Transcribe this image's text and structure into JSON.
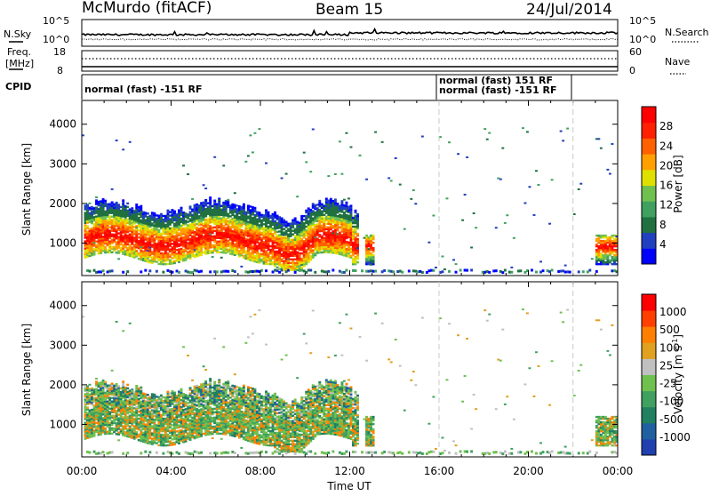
{
  "header": {
    "station": "McMurdo (fitACF)",
    "beam": "Beam 15",
    "date": "24/Jul/2014"
  },
  "noise_panel": {
    "left_label": "N.Sky",
    "right_label": "N.Search",
    "left_ticks": [
      "10^5",
      "10^0"
    ],
    "right_ticks": [
      "10^5",
      "10^0"
    ]
  },
  "freq_panel": {
    "left_label_line1": "Freq.",
    "left_label_line2": "[MHz]",
    "left_ticks": [
      "18",
      "8"
    ],
    "right_label": "Nave",
    "right_ticks": [
      "60",
      "0"
    ]
  },
  "cpid_panel": {
    "label": "CPID",
    "segments": [
      {
        "text": "normal (fast) -151 RF"
      },
      {
        "text": "normal (fast) 151 RF"
      },
      {
        "text": "normal (fast) -151 RF"
      }
    ]
  },
  "chart_data": [
    {
      "type": "heatmap",
      "name": "power",
      "ylabel": "Slant Range [km]",
      "xlabel": "Time UT",
      "xlim_hours": [
        0,
        24
      ],
      "ylim": [
        180,
        4600
      ],
      "y_ticks": [
        "1000",
        "2000",
        "3000",
        "4000"
      ],
      "y_tick_values": [
        1000,
        2000,
        3000,
        4000
      ],
      "x_ticks": [
        "00:00",
        "04:00",
        "08:00",
        "12:00",
        "16:00",
        "20:00",
        "00:00"
      ],
      "x_tick_hours": [
        0,
        4,
        8,
        12,
        16,
        20,
        24
      ],
      "dashed_time_markers_hours": [
        16.0,
        22.0
      ],
      "colorbar": {
        "label": "Power [dB]",
        "tick_labels": [
          "28",
          "24",
          "20",
          "16",
          "12",
          "8",
          "4"
        ],
        "colors": [
          "#0000ff",
          "#2040c0",
          "#207040",
          "#40a060",
          "#70c050",
          "#e0e000",
          "#ffa000",
          "#ff6000",
          "#ff2000",
          "#ff0000"
        ]
      }
    },
    {
      "type": "heatmap",
      "name": "velocity",
      "ylabel": "Slant Range [km]",
      "xlabel": "Time UT",
      "xlim_hours": [
        0,
        24
      ],
      "ylim": [
        180,
        4600
      ],
      "y_ticks": [
        "1000",
        "2000",
        "3000",
        "4000"
      ],
      "y_tick_values": [
        1000,
        2000,
        3000,
        4000
      ],
      "colorbar": {
        "label": "Velocity [m s",
        "label_superscript": "-1",
        "label_end": "]",
        "tick_labels": [
          "1000",
          "500",
          "100",
          "25",
          "-25",
          "-100",
          "-500",
          "-1000"
        ],
        "colors": [
          "#2040b0",
          "#2060a0",
          "#208060",
          "#40a060",
          "#70c050",
          "#c0c0c0",
          "#e0a020",
          "#ff8000",
          "#ff4000",
          "#ff0000"
        ]
      }
    }
  ]
}
